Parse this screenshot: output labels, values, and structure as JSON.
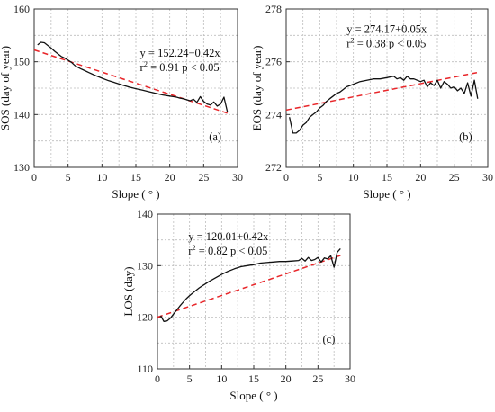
{
  "colors": {
    "observed": "#111111",
    "trend": "#e8262a",
    "grid": "#bdbdbd"
  },
  "chart_data": [
    {
      "type": "line",
      "panel": "(a)",
      "xlabel": "Slope ( ° )",
      "ylabel": "SOS (day of year)",
      "xlim": [
        0,
        30
      ],
      "ylim": [
        130,
        160
      ],
      "xticks": [
        0,
        5,
        10,
        15,
        20,
        25,
        30
      ],
      "yticks": [
        130,
        140,
        150,
        160
      ],
      "grid": true,
      "equation": "y = 152.24−0.42x",
      "stats": {
        "r2": "0.91",
        "p": "< 0.05"
      },
      "trend": {
        "intercept": 152.24,
        "slope": -0.42,
        "x": [
          0,
          28.5
        ]
      },
      "series": [
        {
          "x": [
            0.5,
            1,
            1.5,
            2,
            2.5,
            3,
            3.5,
            4,
            4.5,
            5,
            5.5,
            6,
            6.5,
            7,
            7.5,
            8,
            9,
            10,
            11,
            12,
            13,
            14,
            15,
            16,
            17,
            18,
            19,
            20,
            20.5,
            21,
            21.5,
            22,
            22.5,
            23,
            23.5,
            24,
            24.5,
            25,
            25.5,
            26,
            26.5,
            27,
            27.5,
            28,
            28.5
          ],
          "y": [
            153.2,
            153.7,
            153.6,
            153.1,
            152.6,
            152.0,
            151.5,
            151.0,
            150.7,
            150.3,
            149.9,
            149.3,
            148.9,
            148.6,
            148.3,
            148.0,
            147.4,
            146.9,
            146.4,
            146.0,
            145.6,
            145.2,
            144.9,
            144.6,
            144.3,
            144.0,
            143.7,
            143.5,
            143.4,
            143.3,
            143.1,
            143.0,
            142.8,
            142.6,
            142.9,
            142.3,
            143.4,
            142.5,
            142.0,
            141.8,
            142.4,
            141.6,
            142.0,
            143.3,
            140.5
          ]
        }
      ]
    },
    {
      "type": "line",
      "panel": "(b)",
      "xlabel": "Slope ( ° )",
      "ylabel": "EOS (day of year)",
      "xlim": [
        0,
        30
      ],
      "ylim": [
        272,
        278
      ],
      "xticks": [
        0,
        5,
        10,
        15,
        20,
        25,
        30
      ],
      "yticks": [
        272,
        274,
        276,
        278
      ],
      "grid": true,
      "equation": "y = 274.17+0.05x",
      "stats": {
        "r2": "0.38",
        "p": "< 0.05"
      },
      "trend": {
        "intercept": 274.17,
        "slope": 0.05,
        "x": [
          0,
          28.5
        ]
      },
      "series": [
        {
          "x": [
            0.5,
            1,
            1.5,
            2,
            2.5,
            3,
            3.5,
            4,
            4.5,
            5,
            5.5,
            6,
            6.5,
            7,
            7.5,
            8,
            9,
            10,
            11,
            12,
            13,
            14,
            15,
            16,
            16.5,
            17,
            17.5,
            18,
            18.5,
            19,
            19.5,
            20,
            20.5,
            21,
            21.5,
            22,
            22.5,
            23,
            23.5,
            24,
            24.5,
            25,
            25.5,
            26,
            26.5,
            27,
            27.5,
            28,
            28.5
          ],
          "y": [
            273.9,
            273.3,
            273.3,
            273.4,
            273.6,
            273.7,
            273.9,
            274.0,
            274.1,
            274.25,
            274.35,
            274.5,
            274.6,
            274.7,
            274.8,
            274.85,
            275.05,
            275.15,
            275.25,
            275.3,
            275.35,
            275.35,
            275.4,
            275.45,
            275.35,
            275.4,
            275.3,
            275.45,
            275.35,
            275.35,
            275.3,
            275.25,
            275.3,
            275.05,
            275.2,
            275.1,
            275.3,
            275.0,
            275.25,
            275.15,
            275.0,
            275.05,
            274.9,
            275.0,
            274.8,
            275.2,
            274.7,
            275.3,
            274.6
          ]
        }
      ]
    },
    {
      "type": "line",
      "panel": "(c)",
      "xlabel": "Slope ( ° )",
      "ylabel": "LOS (day)",
      "xlim": [
        0,
        30
      ],
      "ylim": [
        110,
        140
      ],
      "xticks": [
        0,
        5,
        10,
        15,
        20,
        25,
        30
      ],
      "yticks": [
        110,
        120,
        130,
        140
      ],
      "grid": true,
      "equation": "y = 120.01+0.42x",
      "stats": {
        "r2": "0.82",
        "p": "< 0.05"
      },
      "trend": {
        "intercept": 120.01,
        "slope": 0.42,
        "x": [
          0,
          28.5
        ]
      },
      "series": [
        {
          "x": [
            0.5,
            1,
            1.5,
            2,
            2.5,
            3,
            3.5,
            4,
            4.5,
            5,
            5.5,
            6,
            6.5,
            7,
            7.5,
            8,
            9,
            10,
            11,
            12,
            13,
            14,
            15,
            16,
            17,
            18,
            19,
            20,
            21,
            22,
            22.5,
            23,
            23.5,
            24,
            24.5,
            25,
            25.5,
            26,
            26.5,
            27,
            27.5,
            28,
            28.5
          ],
          "y": [
            120.3,
            119.2,
            119.3,
            119.8,
            120.6,
            121.4,
            122.2,
            122.9,
            123.6,
            124.2,
            124.7,
            125.2,
            125.7,
            126.1,
            126.5,
            126.9,
            127.6,
            128.3,
            128.9,
            129.4,
            129.8,
            130.0,
            130.2,
            130.5,
            130.6,
            130.7,
            130.8,
            130.8,
            130.9,
            131.0,
            131.4,
            130.9,
            131.6,
            131.0,
            131.2,
            131.6,
            130.7,
            131.5,
            131.3,
            131.9,
            129.7,
            132.6,
            133.3
          ]
        }
      ]
    }
  ]
}
